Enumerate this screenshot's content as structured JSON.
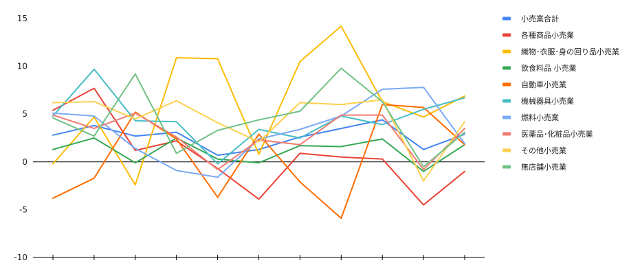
{
  "chart_data": {
    "type": "line",
    "title": "",
    "xlabel": "",
    "ylabel": "",
    "ylim": [
      -10,
      15
    ],
    "yticks": [
      -10,
      -5,
      0,
      5,
      10,
      15
    ],
    "x_count": 11,
    "grid": false,
    "legend_position": "right",
    "series": [
      {
        "name": "小売業合計",
        "color": "#4285F4",
        "values": [
          2.8,
          3.8,
          2.7,
          3.1,
          0.7,
          1.3,
          2.6,
          3.5,
          4.4,
          1.3,
          2.9
        ]
      },
      {
        "name": "各種商品小売業",
        "color": "#EA4335",
        "values": [
          5.4,
          7.7,
          1.2,
          2.2,
          -0.7,
          -3.9,
          0.9,
          0.5,
          0.3,
          -4.5,
          -1.0
        ]
      },
      {
        "name": "織物･衣服･身の回り品小売業",
        "color": "#FBBC04",
        "values": [
          -0.2,
          4.7,
          -2.4,
          10.9,
          10.8,
          0.8,
          10.5,
          14.2,
          6.3,
          4.7,
          6.9
        ]
      },
      {
        "name": "飲食料品 小売業",
        "color": "#34A853",
        "values": [
          1.3,
          2.5,
          -0.1,
          2.5,
          0.3,
          -0.1,
          1.7,
          1.6,
          2.4,
          -1.0,
          1.8
        ]
      },
      {
        "name": "自動車小売業",
        "color": "#FF6D01",
        "values": [
          -3.8,
          -1.7,
          5.2,
          2.4,
          -3.7,
          2.9,
          -2.1,
          -5.9,
          6.0,
          5.7,
          1.8
        ]
      },
      {
        "name": "機械器具小売業",
        "color": "#46BDC6",
        "values": [
          4.8,
          9.7,
          4.3,
          4.2,
          -0.2,
          3.4,
          2.5,
          4.8,
          3.9,
          5.5,
          6.7
        ]
      },
      {
        "name": "燃料小売業",
        "color": "#7BAAF7",
        "values": [
          5.1,
          4.8,
          1.4,
          -0.9,
          -1.6,
          2.4,
          3.4,
          4.8,
          7.6,
          7.8,
          1.9
        ]
      },
      {
        "name": "医薬品･化粧品小売業",
        "color": "#F07B72",
        "values": [
          4.9,
          3.5,
          5.1,
          2.6,
          -0.8,
          2.3,
          1.8,
          4.9,
          4.9,
          -0.8,
          3.5
        ]
      },
      {
        "name": "その他小売業",
        "color": "#FCD04F",
        "values": [
          6.2,
          6.3,
          4.5,
          6.4,
          4.1,
          2.1,
          6.2,
          6.0,
          6.5,
          -2.0,
          4.2
        ]
      },
      {
        "name": "無店舗小売業",
        "color": "#71C287",
        "values": [
          4.6,
          2.7,
          9.2,
          0.9,
          3.3,
          4.4,
          5.3,
          9.8,
          6.3,
          -0.5,
          3.1
        ]
      }
    ]
  }
}
